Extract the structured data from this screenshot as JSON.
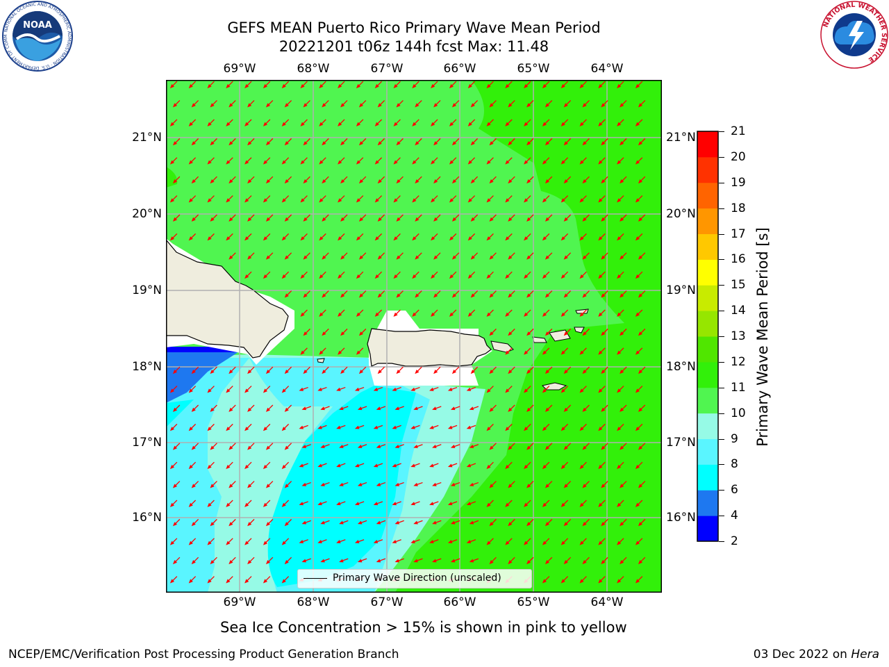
{
  "title": {
    "line1": "GEFS MEAN Puerto Rico Primary Wave Mean Period",
    "line2": "20221201 t06z 144h fcst   Max: 11.48"
  },
  "map": {
    "lon_labels": [
      "69°W",
      "68°W",
      "67°W",
      "66°W",
      "65°W",
      "64°W"
    ],
    "lat_labels": [
      "21°N",
      "20°N",
      "19°N",
      "18°N",
      "17°N",
      "16°N"
    ],
    "legend_label": "Primary Wave Direction (unscaled)",
    "arrow_color": "#ff0000",
    "land_color": "#efedde",
    "coast_color": "#000000"
  },
  "colorbar": {
    "label": "Primary Wave Mean Period [s]",
    "ticks": [
      "2",
      "4",
      "6",
      "8",
      "9",
      "10",
      "11",
      "12",
      "13",
      "14",
      "15",
      "16",
      "17",
      "18",
      "19",
      "20",
      "21"
    ],
    "colors": [
      "#0000ff",
      "#1e78f0",
      "#00ffff",
      "#5af5ff",
      "#96fae6",
      "#50f550",
      "#32f00a",
      "#50e600",
      "#96e600",
      "#c8eb00",
      "#ffff00",
      "#ffc800",
      "#ff9600",
      "#ff6400",
      "#ff3200",
      "#ff0000"
    ]
  },
  "notes": {
    "ice": "Sea Ice Concentration > 15% is shown in pink to yellow",
    "footer_left": "NCEP/EMC/Verification Post Processing Product Generation Branch",
    "footer_right_prefix": "03 Dec 2022 on ",
    "footer_right_host": "Hera"
  },
  "logos": {
    "noaa_text": "NOAA",
    "noaa_ring": "NATIONAL OCEANIC AND ATMOSPHERIC ADMINISTRATION · U.S. DEPARTMENT OF COMMERCE",
    "nws_ring": "NATIONAL WEATHER SERVICE"
  }
}
